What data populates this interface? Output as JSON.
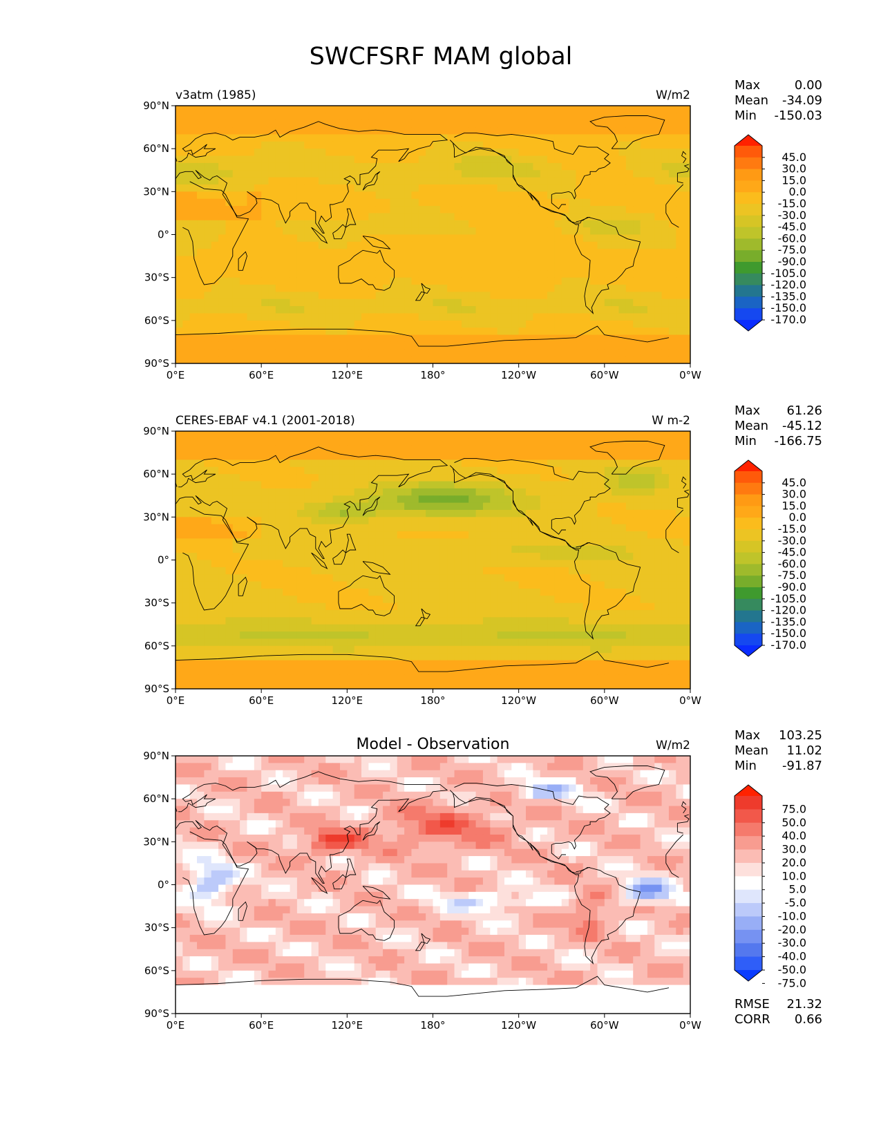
{
  "figure": {
    "title": "SWCFSRF MAM global"
  },
  "lon_ticks": [
    "0°E",
    "60°E",
    "120°E",
    "180°",
    "120°W",
    "60°W",
    "0°W"
  ],
  "lat_ticks": [
    "90°N",
    "60°N",
    "30°N",
    "0°",
    "30°S",
    "60°S",
    "90°S"
  ],
  "stat_names": {
    "max": "Max",
    "mean": "Mean",
    "min": "Min",
    "rmse": "RMSE",
    "corr": "CORR"
  },
  "panels": [
    {
      "left_title": "v3atm (1985)",
      "center_title": "",
      "units": "W/m2",
      "stats": {
        "max": "0.00",
        "mean": "-34.09",
        "min": "-150.03"
      },
      "colorbar": {
        "labels": [
          "45.0",
          "30.0",
          "15.0",
          "0.0",
          "-15.0",
          "-30.0",
          "-45.0",
          "-60.0",
          "-75.0",
          "-90.0",
          "-105.0",
          "-120.0",
          "-135.0",
          "-150.0",
          "-170.0"
        ],
        "colors": [
          "#ff2200",
          "#ff5a0a",
          "#ff7a10",
          "#ff9a14",
          "#ffa818",
          "#fbbc1c",
          "#ecc423",
          "#d6c525",
          "#bfc42a",
          "#9fba2c",
          "#78ad2b",
          "#3f9a2e",
          "#368a5e",
          "#23768f",
          "#1a64c4",
          "#1548f0",
          "#0a2cff"
        ]
      },
      "field": "model"
    },
    {
      "left_title": "CERES-EBAF v4.1 (2001-2018)",
      "center_title": "",
      "units": "W m-2",
      "stats": {
        "max": "61.26",
        "mean": "-45.12",
        "min": "-166.75"
      },
      "colorbar": {
        "labels": [
          "45.0",
          "30.0",
          "15.0",
          "0.0",
          "-15.0",
          "-30.0",
          "-45.0",
          "-60.0",
          "-75.0",
          "-90.0",
          "-105.0",
          "-120.0",
          "-135.0",
          "-150.0",
          "-170.0"
        ],
        "colors": [
          "#ff2200",
          "#ff5a0a",
          "#ff7a10",
          "#ff9a14",
          "#ffa818",
          "#fbbc1c",
          "#ecc423",
          "#d6c525",
          "#bfc42a",
          "#9fba2c",
          "#78ad2b",
          "#3f9a2e",
          "#368a5e",
          "#23768f",
          "#1a64c4",
          "#1548f0",
          "#0a2cff"
        ]
      },
      "field": "obs"
    },
    {
      "left_title": "",
      "center_title": "Model - Observation",
      "units": "W/m2",
      "stats": {
        "max": "103.25",
        "mean": "11.02",
        "min": "-91.87",
        "rmse": "21.32",
        "corr": "0.66"
      },
      "colorbar": {
        "labels": [
          "75.0",
          "50.0",
          "40.0",
          "30.0",
          "20.0",
          "10.0",
          "5.0",
          "-5.0",
          "-10.0",
          "-20.0",
          "-30.0",
          "-40.0",
          "-50.0",
          "-75.0"
        ],
        "colors": [
          "#ff2200",
          "#ee3b2c",
          "#f2584a",
          "#f57a6c",
          "#f89c90",
          "#fbbcb4",
          "#fde0dc",
          "#ffffff",
          "#dfe6fc",
          "#bccafa",
          "#98aef6",
          "#7692f2",
          "#5478ee",
          "#2f5ef8",
          "#0a3cff"
        ]
      },
      "field": "diff"
    }
  ],
  "chart_data": [
    {
      "type": "heatmap",
      "title": "v3atm (1985)",
      "units": "W/m2",
      "variable": "SWCFSRF",
      "season": "MAM",
      "x_ticks": [
        "0°E",
        "60°E",
        "120°E",
        "180°",
        "120°W",
        "60°W",
        "0°W"
      ],
      "y_ticks": [
        "90°N",
        "60°N",
        "30°N",
        "0°",
        "30°S",
        "60°S",
        "90°S"
      ],
      "xlim": [
        0,
        360
      ],
      "ylim": [
        -90,
        90
      ],
      "levels": [
        -170,
        -150,
        -135,
        -120,
        -105,
        -90,
        -75,
        -60,
        -45,
        -30,
        -15,
        0,
        15,
        30,
        45
      ],
      "stats": {
        "max": 0.0,
        "mean": -34.09,
        "min": -150.03
      }
    },
    {
      "type": "heatmap",
      "title": "CERES-EBAF v4.1 (2001-2018)",
      "units": "W m-2",
      "variable": "SWCFSRF",
      "season": "MAM",
      "x_ticks": [
        "0°E",
        "60°E",
        "120°E",
        "180°",
        "120°W",
        "60°W",
        "0°W"
      ],
      "y_ticks": [
        "90°N",
        "60°N",
        "30°N",
        "0°",
        "30°S",
        "60°S",
        "90°S"
      ],
      "xlim": [
        0,
        360
      ],
      "ylim": [
        -90,
        90
      ],
      "levels": [
        -170,
        -150,
        -135,
        -120,
        -105,
        -90,
        -75,
        -60,
        -45,
        -30,
        -15,
        0,
        15,
        30,
        45
      ],
      "stats": {
        "max": 61.26,
        "mean": -45.12,
        "min": -166.75
      }
    },
    {
      "type": "heatmap",
      "title": "Model - Observation",
      "units": "W/m2",
      "variable": "SWCFSRF",
      "season": "MAM",
      "x_ticks": [
        "0°E",
        "60°E",
        "120°E",
        "180°",
        "120°W",
        "60°W",
        "0°W"
      ],
      "y_ticks": [
        "90°N",
        "60°N",
        "30°N",
        "0°",
        "30°S",
        "60°S",
        "90°S"
      ],
      "xlim": [
        0,
        360
      ],
      "ylim": [
        -90,
        90
      ],
      "levels": [
        -75,
        -50,
        -40,
        -30,
        -20,
        -10,
        -5,
        5,
        10,
        20,
        30,
        40,
        50,
        75
      ],
      "stats": {
        "max": 103.25,
        "mean": 11.02,
        "min": -91.87,
        "rmse": 21.32,
        "corr": 0.66
      }
    }
  ]
}
